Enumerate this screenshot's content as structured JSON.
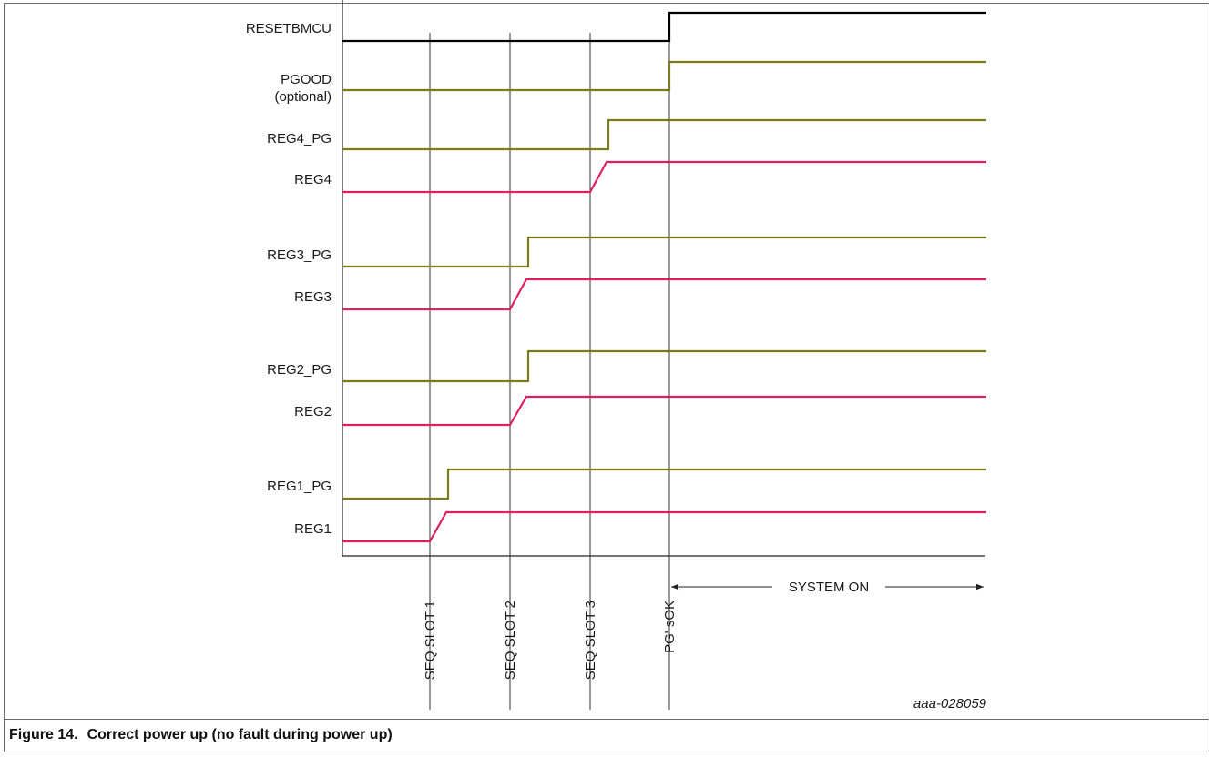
{
  "signals": [
    {
      "id": "resetbmcu",
      "label": [
        "RESETBMCU"
      ],
      "color": "#000000",
      "step_at": "pgs_ok",
      "ramp": false
    },
    {
      "id": "pgood",
      "label": [
        "PGOOD",
        "(optional)"
      ],
      "color": "#7a7a1e",
      "step_at": "pgs_ok",
      "ramp": false
    },
    {
      "id": "reg4_pg",
      "label": [
        "REG4_PG"
      ],
      "color": "#7a7a1e",
      "step_at": "seq_slot_3",
      "ramp": false
    },
    {
      "id": "reg4",
      "label": [
        "REG4"
      ],
      "color": "#e0215e",
      "step_at": "seq_slot_3",
      "ramp": true
    },
    {
      "id": "reg3_pg",
      "label": [
        "REG3_PG"
      ],
      "color": "#7a7a1e",
      "step_at": "seq_slot_2",
      "ramp": false
    },
    {
      "id": "reg3",
      "label": [
        "REG3"
      ],
      "color": "#e0215e",
      "step_at": "seq_slot_2",
      "ramp": true
    },
    {
      "id": "reg2_pg",
      "label": [
        "REG2_PG"
      ],
      "color": "#7a7a1e",
      "step_at": "seq_slot_2",
      "ramp": false
    },
    {
      "id": "reg2",
      "label": [
        "REG2"
      ],
      "color": "#e0215e",
      "step_at": "seq_slot_2",
      "ramp": true
    },
    {
      "id": "reg1_pg",
      "label": [
        "REG1_PG"
      ],
      "color": "#7a7a1e",
      "step_at": "seq_slot_1",
      "ramp": false
    },
    {
      "id": "reg1",
      "label": [
        "REG1"
      ],
      "color": "#e0215e",
      "step_at": "seq_slot_1",
      "ramp": true
    }
  ],
  "markers": [
    {
      "id": "seq_slot_1",
      "label": "SEQ SLOT 1"
    },
    {
      "id": "seq_slot_2",
      "label": "SEQ SLOT 2"
    },
    {
      "id": "seq_slot_3",
      "label": "SEQ SLOT 3"
    },
    {
      "id": "pgs_ok",
      "label": "PG' sOK"
    }
  ],
  "system_on_label": "SYSTEM ON",
  "doc_id": "aaa-028059",
  "caption": {
    "number": "Figure 14.",
    "text": "Correct power up (no fault during power up)"
  }
}
